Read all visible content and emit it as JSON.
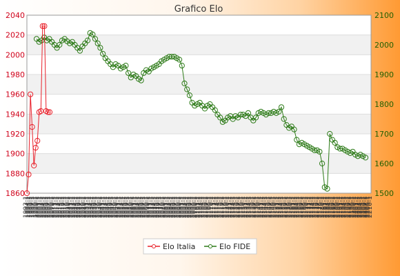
{
  "chart_data": {
    "type": "line",
    "title": "Grafico Elo",
    "xlabel": "",
    "ylabel_left": "",
    "ylabel_right": "",
    "left_axis": {
      "ylim": [
        1860,
        2040
      ],
      "ticks": [
        1860,
        1880,
        1900,
        1920,
        1940,
        1960,
        1980,
        2000,
        2020,
        2040
      ],
      "color": "#d0021b"
    },
    "right_axis": {
      "ylim": [
        1500,
        2100
      ],
      "ticks": [
        1500,
        1600,
        1700,
        1800,
        1900,
        2000,
        2100
      ],
      "color": "#1f5f00"
    },
    "grid": true,
    "legend": {
      "position": "bottom-center"
    },
    "x_tick_labels": [
      "1993-1",
      "1994-1",
      "1995-1",
      "1996-1",
      "1997-1",
      "1998-1",
      "1999-1",
      "2000-1",
      "2001-1",
      "2002-1",
      "2003-1",
      "2004-1",
      "2005-1",
      "2006-1",
      "2007-1",
      "2008-1",
      "2009-1",
      "2010-1",
      "2011-1",
      "2012-1",
      "2013-1",
      "2014-1",
      "2015-1",
      "2016-1",
      "2017-1",
      "2018-1",
      "2019-1",
      "2020-1",
      "2021-1",
      "2022-1",
      "2023-1",
      "2024-1",
      "2025-1",
      "2026-1",
      "2027-1",
      "2028-1",
      "2029-1",
      "2030-1",
      "2031-1",
      "2032-1",
      "2033-1",
      "2034-1",
      "2035-1",
      "2036-1",
      "2037-1",
      "2038-1",
      "2039-1",
      "2040-1",
      "2041-1",
      "2042-1",
      "2043-1",
      "2044-1",
      "2045-1",
      "2046-1",
      "2047-1",
      "2048-1",
      "2049-1",
      "2050-1",
      "2051-1",
      "2052-1",
      "2053-1",
      "2054-1",
      "2055-1",
      "2056-1",
      "2057-1",
      "2058-1",
      "2059-1",
      "2060-1",
      "2061-1",
      "2062-1",
      "2063-1",
      "2064-1",
      "2065-1",
      "2066-1",
      "2067-1",
      "2068-1",
      "2069-1",
      "2070-1",
      "2071-1",
      "2072-1",
      "2073-1",
      "2074-1",
      "2075-1",
      "2076-1",
      "2077-1",
      "2078-1",
      "2079-1",
      "2080-1",
      "2081-1",
      "2082-1",
      "2083-1",
      "2084-1",
      "2085-1",
      "2086-1",
      "2087-1",
      "2088-1",
      "2089-1",
      "2090-1",
      "2091-1",
      "2092-1",
      "2093-1",
      "2094-1",
      "2095-1",
      "2096-1",
      "2097-1",
      "2098-1",
      "2099-1",
      "2100-1",
      "2101-1",
      "2102-1",
      "2103-1",
      "2104-1",
      "2105-1",
      "2106-1",
      "2107-1",
      "2108-1",
      "2109-1",
      "2110-1",
      "2111-1",
      "2112-1",
      "2113-1",
      "2114-1",
      "2115-1",
      "2116-1",
      "2117-1",
      "2118-1",
      "2119-1",
      "2120-1",
      "2121-1",
      "2122-1",
      "2123-1",
      "2124-1",
      "2125-1",
      "2126-1",
      "2127-1",
      "2128-1",
      "2129-1",
      "2130-1",
      "2131-1",
      "2132-1",
      "2133-1",
      "2134-1",
      "2135-1",
      "2136-1",
      "2137-1",
      "2138-1",
      "2139-1",
      "2140-1",
      "2141-1",
      "2142-1",
      "2143-1",
      "2144-1",
      "2145-1",
      "2146-1",
      "2147-1",
      "2148-1",
      "2149-1",
      "2150-1",
      "2151-1",
      "2152-1",
      "2153-1",
      "2154-1",
      "2155-1",
      "2156-1",
      "2157-1",
      "2158-1",
      "2159-1",
      "2160-1",
      "2161-1",
      "2162-1",
      "2163-1",
      "2164-1",
      "2165-1",
      "2166-1",
      "2167-1",
      "2168-1",
      "2169-1",
      "2170-1",
      "2171-1",
      "2172-1",
      "2173-1",
      "2174-1",
      "2175-1",
      "2176-1",
      "2177-1",
      "2178-1",
      "2179-1",
      "2180-1",
      "2181-1",
      "2182-1",
      "2183-1",
      "2184-1",
      "2185-1",
      "2186-1",
      "2187-1",
      "2188-1",
      "2189-1",
      "2190-1",
      "2191-1",
      "2192-1",
      "2193-1",
      "2194-1",
      "2195-1",
      "2196-1",
      "2197-1",
      "2198-1",
      "2199-1",
      "2200-1",
      "2201-1",
      "2202-1",
      "2203-1",
      "2204-1",
      "2205-1",
      "2206-1",
      "2207-1",
      "2208-1",
      "2209-1",
      "2210-1"
    ],
    "series": [
      {
        "name": "Elo Italia",
        "axis": "left",
        "color": "#e8202a",
        "values": [
          1860,
          1879,
          1960,
          1927,
          1888,
          1906,
          1913,
          1942,
          1943,
          2029,
          2029,
          1943,
          1942,
          1942
        ]
      },
      {
        "name": "Elo FIDE",
        "axis": "right",
        "color": "#2c7a17",
        "values": [
          2020,
          2010,
          2015,
          2025,
          2015,
          2020,
          2010,
          2000,
          1990,
          2000,
          2015,
          2020,
          2012,
          2005,
          2010,
          2000,
          1990,
          1980,
          1995,
          2005,
          2015,
          2040,
          2035,
          2020,
          2005,
          1990,
          1970,
          1955,
          1945,
          1935,
          1925,
          1935,
          1930,
          1920,
          1925,
          1930,
          1905,
          1890,
          1900,
          1895,
          1885,
          1880,
          1905,
          1915,
          1910,
          1920,
          1925,
          1930,
          1935,
          1945,
          1950,
          1955,
          1960,
          1960,
          1960,
          1955,
          1950,
          1930,
          1870,
          1850,
          1830,
          1805,
          1795,
          1800,
          1805,
          1795,
          1785,
          1795,
          1800,
          1790,
          1780,
          1765,
          1755,
          1740,
          1745,
          1755,
          1760,
          1750,
          1760,
          1755,
          1765,
          1765,
          1760,
          1770,
          1755,
          1745,
          1755,
          1770,
          1775,
          1770,
          1765,
          1770,
          1770,
          1775,
          1770,
          1775,
          1790,
          1750,
          1730,
          1720,
          1725,
          1715,
          1680,
          1665,
          1670,
          1665,
          1660,
          1655,
          1650,
          1645,
          1645,
          1640,
          1600,
          1520,
          1515,
          1700,
          1680,
          1670,
          1655,
          1650,
          1650,
          1645,
          1640,
          1635,
          1640,
          1630,
          1625,
          1630,
          1625,
          1620
        ]
      }
    ]
  }
}
